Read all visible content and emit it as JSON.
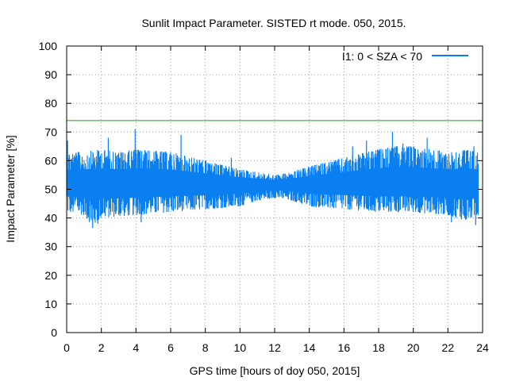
{
  "chart_data": {
    "type": "line",
    "title": "Sunlit Impact Parameter. SISTED rt mode. 050, 2015.",
    "xlabel": "GPS time [hours of doy 050, 2015]",
    "ylabel": "Impact Parameter [%]",
    "xlim": [
      0,
      24
    ],
    "ylim": [
      0,
      100
    ],
    "xticks": [
      0,
      2,
      4,
      6,
      8,
      10,
      12,
      14,
      16,
      18,
      20,
      22,
      24
    ],
    "yticks": [
      0,
      10,
      20,
      30,
      40,
      50,
      60,
      70,
      80,
      90,
      100
    ],
    "grid": true,
    "legend_position": "top-right",
    "series": [
      {
        "name": "I1: 0 < SZA < 70",
        "color": "#0a7ff0",
        "x_range": [
          0,
          23.75
        ],
        "center": 52,
        "band_min": [
          [
            0,
            42
          ],
          [
            1,
            41
          ],
          [
            1.5,
            37
          ],
          [
            2,
            40
          ],
          [
            4,
            41
          ],
          [
            6,
            42
          ],
          [
            8,
            43
          ],
          [
            10,
            44
          ],
          [
            11,
            46
          ],
          [
            12,
            47
          ],
          [
            13,
            46
          ],
          [
            14,
            44
          ],
          [
            16,
            43
          ],
          [
            18,
            42
          ],
          [
            20,
            42
          ],
          [
            22,
            41
          ],
          [
            23,
            39
          ],
          [
            23.75,
            41
          ]
        ],
        "band_max": [
          [
            0,
            63
          ],
          [
            1,
            63
          ],
          [
            2,
            64
          ],
          [
            3,
            63
          ],
          [
            4,
            64
          ],
          [
            6,
            63
          ],
          [
            8,
            60
          ],
          [
            10,
            57
          ],
          [
            11,
            56
          ],
          [
            12,
            55
          ],
          [
            13,
            56
          ],
          [
            14,
            58
          ],
          [
            16,
            61
          ],
          [
            18,
            64
          ],
          [
            19,
            65
          ],
          [
            20,
            65
          ],
          [
            22,
            63
          ],
          [
            23,
            64
          ],
          [
            23.75,
            63
          ]
        ],
        "spikes": [
          [
            0.05,
            67
          ],
          [
            1.5,
            36.5
          ],
          [
            1.8,
            38
          ],
          [
            2.4,
            68
          ],
          [
            3.95,
            71
          ],
          [
            4.3,
            38.5
          ],
          [
            6.6,
            69
          ],
          [
            9.5,
            61
          ],
          [
            16.5,
            65
          ],
          [
            17.3,
            67
          ],
          [
            18.8,
            70
          ],
          [
            19.4,
            66
          ],
          [
            20.8,
            68
          ],
          [
            21.1,
            62
          ],
          [
            22.2,
            38.5
          ],
          [
            23.5,
            65
          ],
          [
            23.6,
            37.5
          ]
        ]
      },
      {
        "name": "",
        "color": "#1a9a1a",
        "x": [
          0,
          24
        ],
        "y": [
          74,
          74
        ]
      }
    ]
  }
}
